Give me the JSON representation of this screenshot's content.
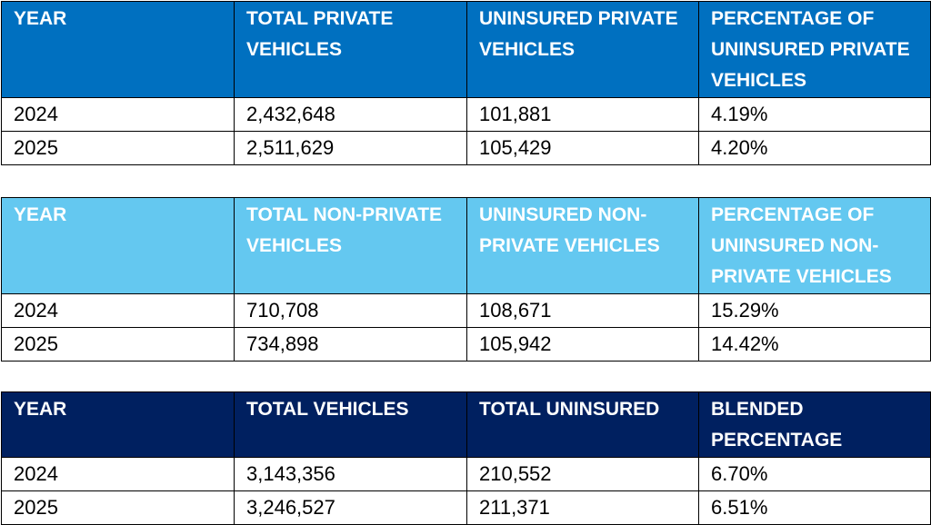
{
  "colors": {
    "private_header": "#0070c0",
    "nonprivate_header": "#64c8f0",
    "total_header": "#002060"
  },
  "private": {
    "headers": [
      "YEAR",
      "TOTAL PRIVATE VEHICLES",
      "UNINSURED PRIVATE VEHICLES",
      "PERCENTAGE OF UNINSURED PRIVATE VEHICLES"
    ],
    "rows": [
      [
        "2024",
        "2,432,648",
        "101,881",
        "4.19%"
      ],
      [
        "2025",
        "2,511,629",
        "105,429",
        "4.20%"
      ]
    ]
  },
  "nonprivate": {
    "headers": [
      "YEAR",
      "TOTAL NON-PRIVATE VEHICLES",
      "UNINSURED NON-PRIVATE VEHICLES",
      "PERCENTAGE OF UNINSURED NON-PRIVATE VEHICLES"
    ],
    "rows": [
      [
        "2024",
        "710,708",
        "108,671",
        "15.29%"
      ],
      [
        "2025",
        "734,898",
        "105,942",
        "14.42%"
      ]
    ]
  },
  "total": {
    "headers": [
      "YEAR",
      "TOTAL VEHICLES",
      "TOTAL UNINSURED",
      "BLENDED PERCENTAGE"
    ],
    "rows": [
      [
        "2024",
        "3,143,356",
        "210,552",
        "6.70%"
      ],
      [
        "2025",
        "3,246,527",
        "211,371",
        "6.51%"
      ]
    ]
  }
}
